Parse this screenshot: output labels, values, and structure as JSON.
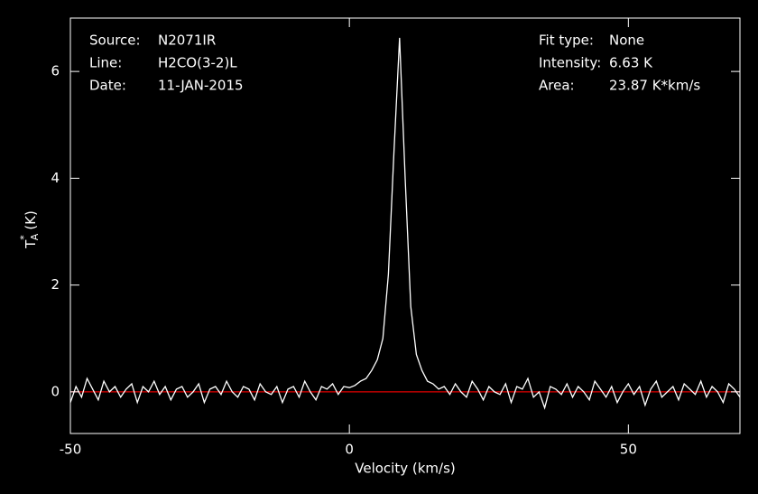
{
  "chart_data": {
    "type": "line",
    "xlabel": "Velocity (km/s)",
    "ylabel": {
      "symbol": "T",
      "superscript": "*",
      "subscript": "A",
      "unit": "(K)"
    },
    "annotations_left": [
      {
        "label": "Source:",
        "value": "N2071IR"
      },
      {
        "label": "Line:",
        "value": "H2CO(3-2)L"
      },
      {
        "label": "Date:",
        "value": "11-JAN-2015"
      }
    ],
    "annotations_right": [
      {
        "label": "Fit type:",
        "value": "None"
      },
      {
        "label": "Intensity:",
        "value": "6.63 K"
      },
      {
        "label": "Area:",
        "value": "23.87 K*km/s"
      }
    ],
    "xlim": [
      -50,
      70
    ],
    "ylim": [
      -0.78,
      7.0
    ],
    "xticks": [
      -50,
      0,
      50
    ],
    "yticks": [
      0,
      2,
      4,
      6
    ],
    "baseline": 0,
    "baseline_color": "#e00000",
    "axis_color": "#ffffff",
    "x": [
      -50,
      -49,
      -48,
      -47,
      -46,
      -45,
      -44,
      -43,
      -42,
      -41,
      -40,
      -39,
      -38,
      -37,
      -36,
      -35,
      -34,
      -33,
      -32,
      -31,
      -30,
      -29,
      -28,
      -27,
      -26,
      -25,
      -24,
      -23,
      -22,
      -21,
      -20,
      -19,
      -18,
      -17,
      -16,
      -15,
      -14,
      -13,
      -12,
      -11,
      -10,
      -9,
      -8,
      -7,
      -6,
      -5,
      -4,
      -3,
      -2,
      -1,
      0,
      1,
      2,
      3,
      4,
      5,
      6,
      7,
      8,
      9,
      10,
      11,
      12,
      13,
      14,
      15,
      16,
      17,
      18,
      19,
      20,
      21,
      22,
      23,
      24,
      25,
      26,
      27,
      28,
      29,
      30,
      31,
      32,
      33,
      34,
      35,
      36,
      37,
      38,
      39,
      40,
      41,
      42,
      43,
      44,
      45,
      46,
      47,
      48,
      49,
      50,
      51,
      52,
      53,
      54,
      55,
      56,
      57,
      58,
      59,
      60,
      61,
      62,
      63,
      64,
      65,
      66,
      67,
      68,
      69,
      70
    ],
    "series": [
      {
        "name": "H2CO(3-2)L",
        "color": "#ffffff",
        "values": [
          -0.2,
          0.1,
          -0.1,
          0.25,
          0.05,
          -0.15,
          0.2,
          0.0,
          0.1,
          -0.1,
          0.05,
          0.15,
          -0.2,
          0.1,
          0.0,
          0.2,
          -0.05,
          0.1,
          -0.15,
          0.05,
          0.1,
          -0.1,
          0.0,
          0.15,
          -0.2,
          0.05,
          0.1,
          -0.05,
          0.2,
          0.0,
          -0.1,
          0.1,
          0.05,
          -0.15,
          0.15,
          0.0,
          -0.05,
          0.1,
          -0.2,
          0.05,
          0.1,
          -0.1,
          0.2,
          0.0,
          -0.15,
          0.1,
          0.05,
          0.15,
          -0.05,
          0.1,
          0.08,
          0.12,
          0.2,
          0.25,
          0.4,
          0.6,
          1.0,
          2.2,
          4.5,
          6.63,
          4.0,
          1.6,
          0.7,
          0.4,
          0.2,
          0.15,
          0.05,
          0.1,
          -0.05,
          0.15,
          0.0,
          -0.1,
          0.2,
          0.05,
          -0.15,
          0.1,
          0.0,
          -0.05,
          0.15,
          -0.2,
          0.1,
          0.05,
          0.25,
          -0.1,
          0.0,
          -0.3,
          0.1,
          0.05,
          -0.05,
          0.15,
          -0.1,
          0.1,
          0.0,
          -0.15,
          0.2,
          0.05,
          -0.1,
          0.1,
          -0.2,
          0.0,
          0.15,
          -0.05,
          0.1,
          -0.25,
          0.05,
          0.2,
          -0.1,
          0.0,
          0.1,
          -0.15,
          0.15,
          0.05,
          -0.05,
          0.2,
          -0.1,
          0.1,
          0.0,
          -0.2,
          0.15,
          0.05,
          -0.1
        ]
      }
    ]
  }
}
